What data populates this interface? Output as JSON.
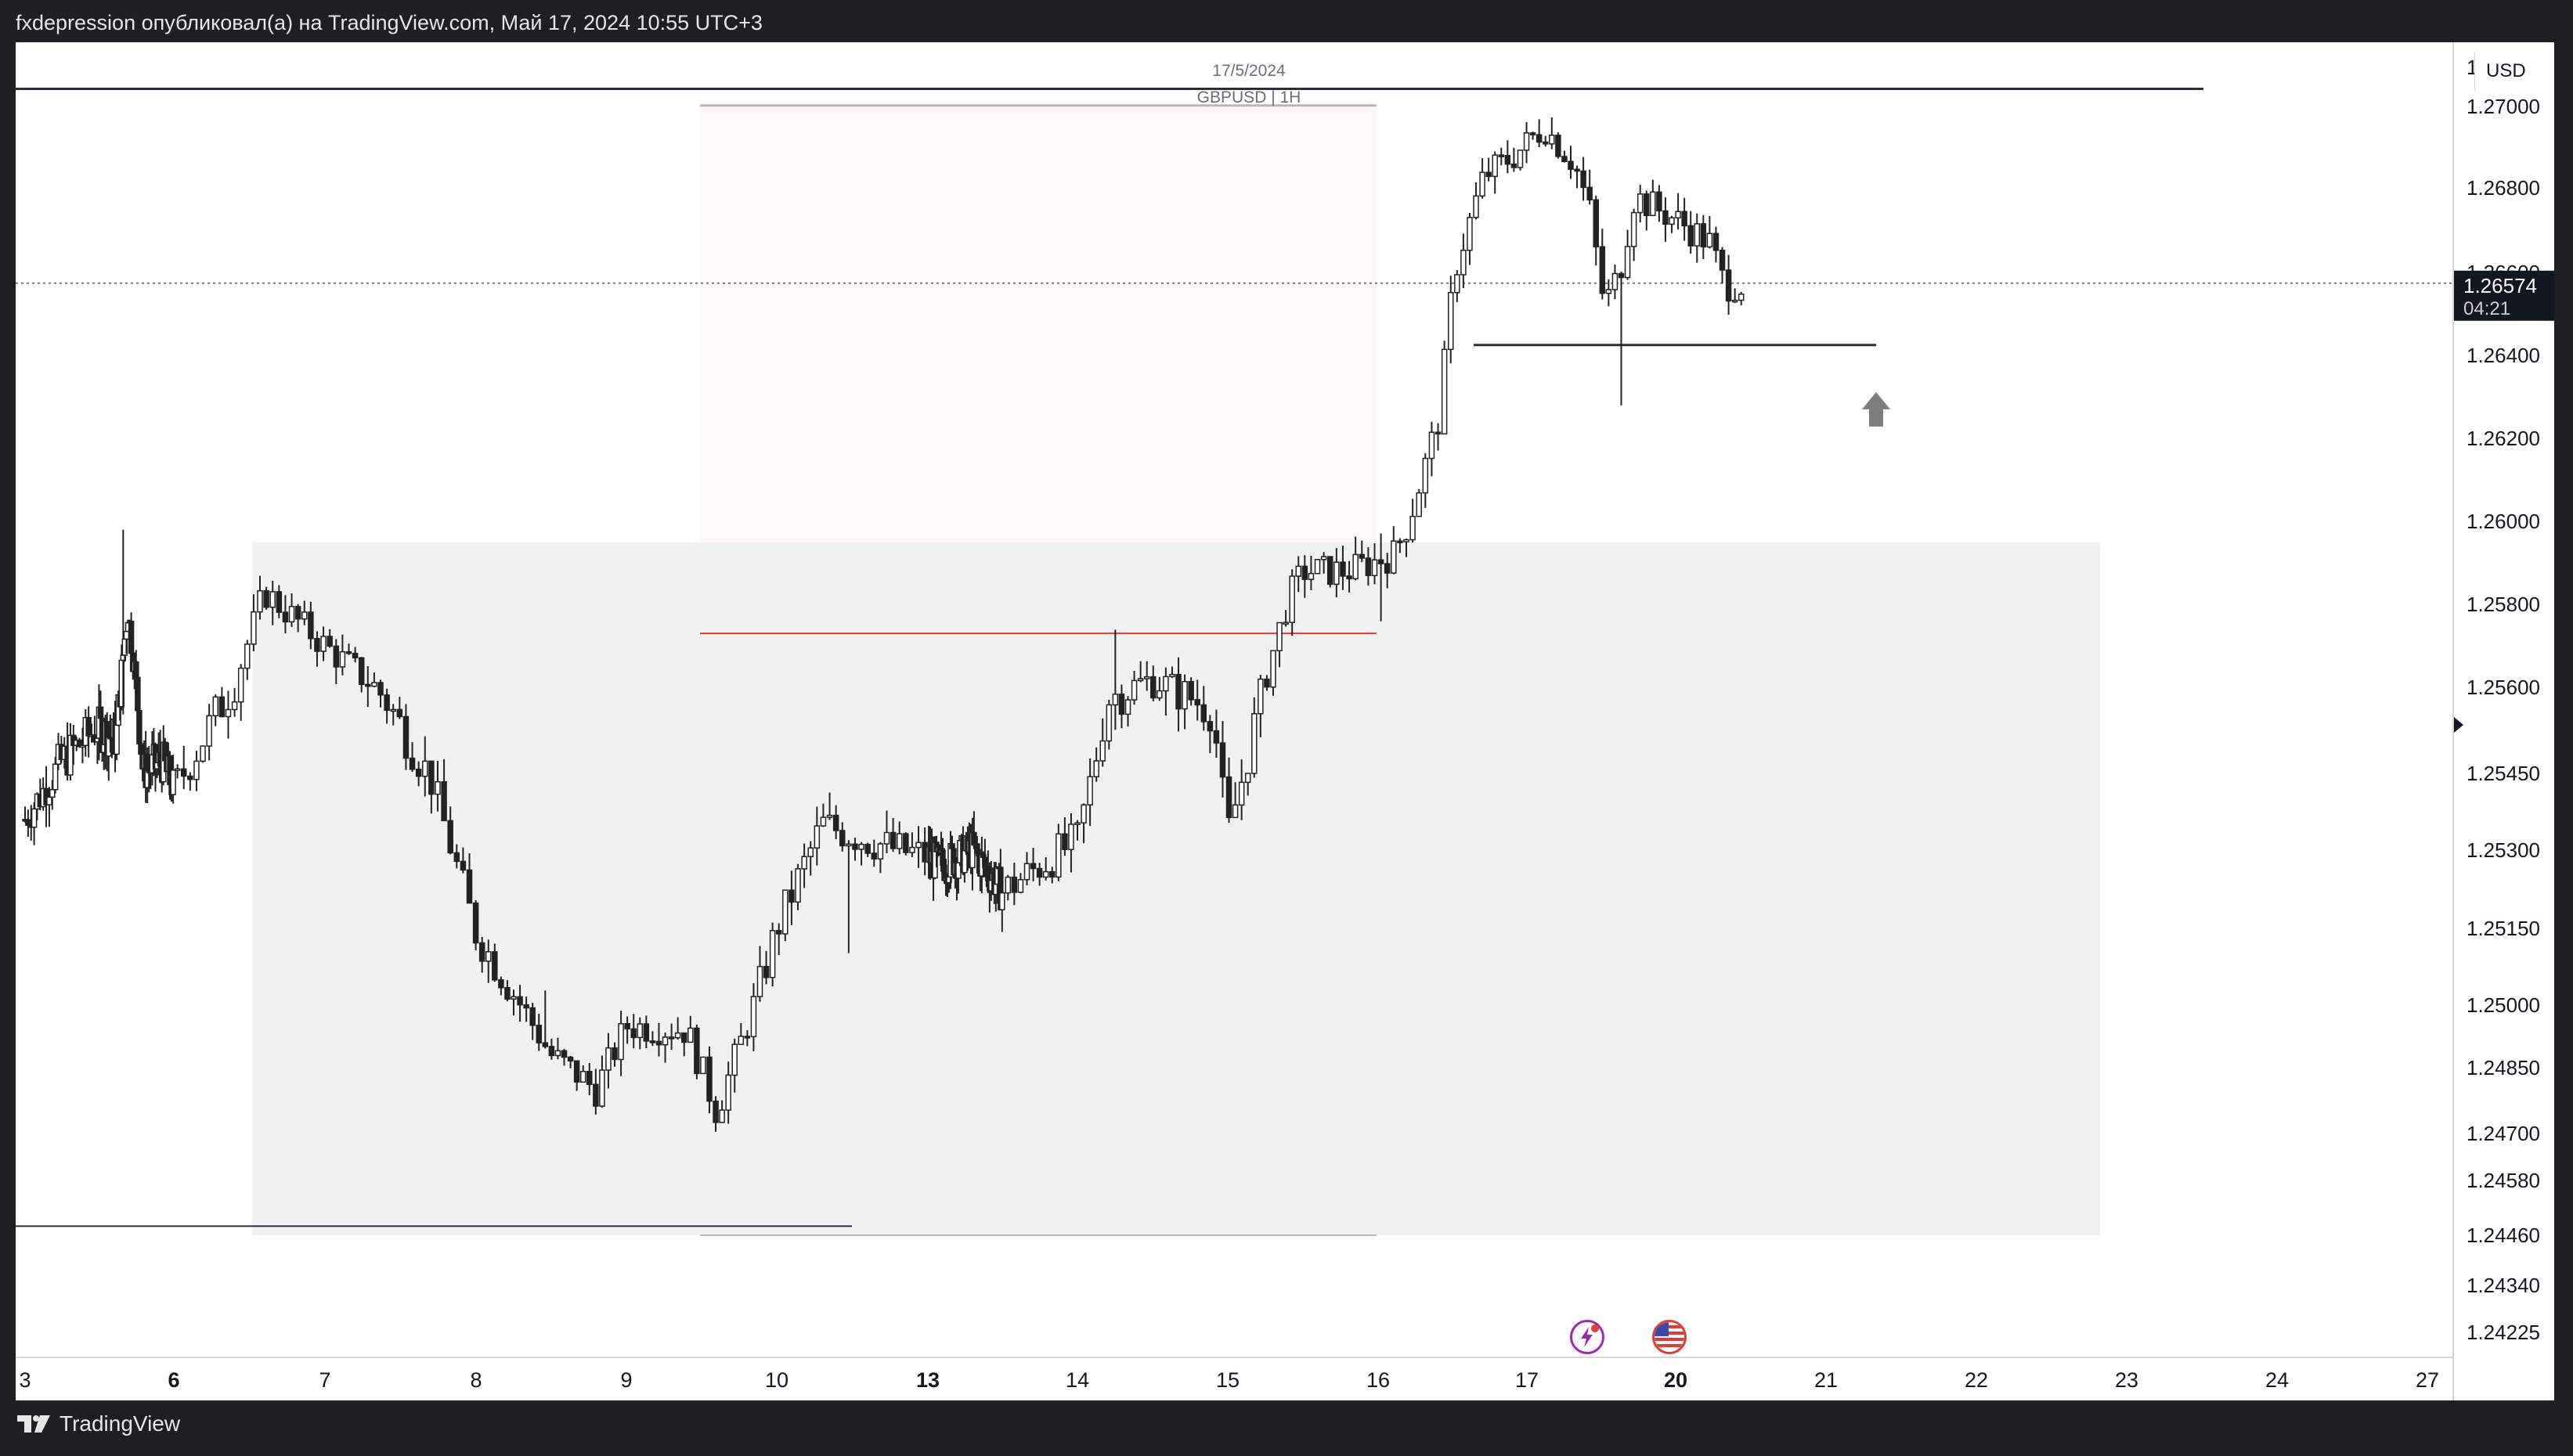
{
  "header": {
    "publisher_text": "fxdepression опубликовал(а) на TradingView.com, Май 17, 2024 10:55 UTC+3"
  },
  "footer": {
    "brand": "TradingView"
  },
  "chart_meta": {
    "date_label": "17/5/2024",
    "symbol_label": "GBPUSD | 1H",
    "currency": "USD",
    "last_price": "1.26574",
    "countdown": "04:21"
  },
  "colors": {
    "candle": "#222222",
    "zone": "#f0f2f1",
    "zone_upper": "#fcf7f9",
    "red_line": "#e53935",
    "level_line": "#2a2e39",
    "gray_line": "#b8b8b8",
    "arrow": "#7d7d7d",
    "price_tag": "#131722"
  },
  "events": [
    {
      "icon": "lightning-icon"
    },
    {
      "icon": "us-flag-icon"
    }
  ],
  "chart_data": {
    "type": "candlestick",
    "title": "",
    "symbol": "GBPUSD",
    "timeframe": "1H",
    "y_axis": {
      "ticks": [
        "1.27200",
        "1.27000",
        "1.26800",
        "1.26600",
        "1.26400",
        "1.26200",
        "1.26000",
        "1.25800",
        "1.25600",
        "1.25450",
        "1.25300",
        "1.25150",
        "1.25000",
        "1.24850",
        "1.24700",
        "1.24580",
        "1.24460",
        "1.24340",
        "1.24225"
      ],
      "last_price": 1.26574
    },
    "x_axis": {
      "ticks": [
        "3",
        "6",
        "7",
        "8",
        "9",
        "10",
        "13",
        "14",
        "15",
        "16",
        "17",
        "20",
        "21",
        "22",
        "23",
        "24",
        "27"
      ],
      "bold_ticks": [
        "6",
        "13",
        "20"
      ]
    },
    "price_path": [
      {
        "d": 3.0,
        "p": 1.2536
      },
      {
        "d": 3.5,
        "p": 1.2547
      },
      {
        "d": 4.0,
        "p": 1.2553
      },
      {
        "d": 4.5,
        "p": 1.2551
      },
      {
        "d": 4.8,
        "p": 1.2579
      },
      {
        "d": 5.2,
        "p": 1.2545
      },
      {
        "d": 5.7,
        "p": 1.2547
      },
      {
        "d": 6.0,
        "p": 1.2542
      },
      {
        "d": 6.4,
        "p": 1.2561
      },
      {
        "d": 6.6,
        "p": 1.2583
      },
      {
        "d": 7.0,
        "p": 1.257
      },
      {
        "d": 7.4,
        "p": 1.2558
      },
      {
        "d": 7.7,
        "p": 1.2544
      },
      {
        "d": 8.0,
        "p": 1.2514
      },
      {
        "d": 8.3,
        "p": 1.25
      },
      {
        "d": 8.5,
        "p": 1.2488
      },
      {
        "d": 8.8,
        "p": 1.248
      },
      {
        "d": 9.0,
        "p": 1.2495
      },
      {
        "d": 9.4,
        "p": 1.2494
      },
      {
        "d": 9.6,
        "p": 1.2475
      },
      {
        "d": 10.0,
        "p": 1.2515
      },
      {
        "d": 10.3,
        "p": 1.2535
      },
      {
        "d": 10.8,
        "p": 1.253
      },
      {
        "d": 11.3,
        "p": 1.2527
      },
      {
        "d": 12.2,
        "p": 1.253
      },
      {
        "d": 13.0,
        "p": 1.2522
      },
      {
        "d": 13.5,
        "p": 1.2532
      },
      {
        "d": 13.7,
        "p": 1.2558
      },
      {
        "d": 14.0,
        "p": 1.2562
      },
      {
        "d": 14.4,
        "p": 1.2556
      },
      {
        "d": 14.5,
        "p": 1.2533
      },
      {
        "d": 14.7,
        "p": 1.2556
      },
      {
        "d": 14.9,
        "p": 1.2581
      },
      {
        "d": 15.0,
        "p": 1.2588
      },
      {
        "d": 15.3,
        "p": 1.2588
      },
      {
        "d": 15.6,
        "p": 1.2592
      },
      {
        "d": 15.7,
        "p": 1.26
      },
      {
        "d": 15.9,
        "p": 1.2625
      },
      {
        "d": 16.0,
        "p": 1.266
      },
      {
        "d": 16.2,
        "p": 1.2683
      },
      {
        "d": 16.4,
        "p": 1.2688
      },
      {
        "d": 16.6,
        "p": 1.2695
      },
      {
        "d": 16.8,
        "p": 1.2686
      },
      {
        "d": 16.9,
        "p": 1.2675
      },
      {
        "d": 17.0,
        "p": 1.2652
      },
      {
        "d": 17.1,
        "p": 1.266
      },
      {
        "d": 17.2,
        "p": 1.2678
      },
      {
        "d": 17.5,
        "p": 1.2672
      },
      {
        "d": 17.7,
        "p": 1.2667
      },
      {
        "d": 17.8,
        "p": 1.2657
      },
      {
        "d": 17.95,
        "p": 1.2657
      }
    ],
    "annotations": {
      "horizontal_levels": [
        1.2709,
        1.27005,
        1.26425,
        1.2573,
        1.2448,
        1.2446
      ],
      "zones": [
        {
          "from": "6.5",
          "to": "22.9",
          "low": 1.2446,
          "high": 1.2595
        },
        {
          "from": "9.5",
          "to": "16.0",
          "low": 1.2595,
          "high": 1.27005
        }
      ],
      "arrow": {
        "direction": "up",
        "near": "21.4",
        "price": 1.2627
      }
    }
  }
}
